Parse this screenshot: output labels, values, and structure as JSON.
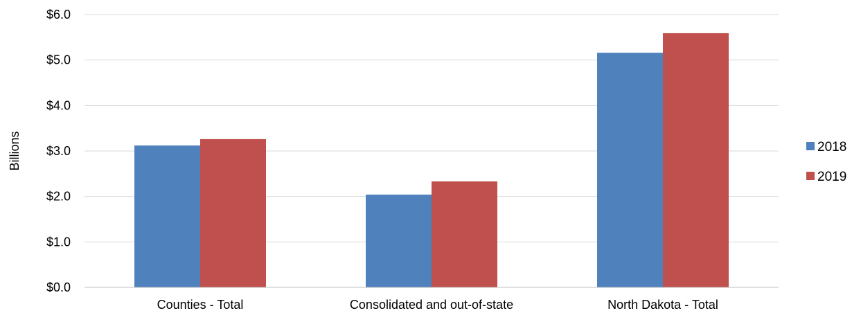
{
  "chart_data": {
    "type": "bar",
    "categories": [
      "Counties - Total",
      "Consolidated and out-of-state",
      "North Dakota - Total"
    ],
    "series": [
      {
        "name": "2018",
        "values": [
          3.12,
          2.04,
          5.16
        ],
        "color": "#4f81bd"
      },
      {
        "name": "2019",
        "values": [
          3.26,
          2.33,
          5.59
        ],
        "color": "#c0504d"
      }
    ],
    "ylabel": "Billions",
    "ylim": [
      0,
      6
    ],
    "yticks": [
      0,
      1,
      2,
      3,
      4,
      5,
      6
    ],
    "ytick_labels": [
      "$0.0",
      "$1.0",
      "$2.0",
      "$3.0",
      "$4.0",
      "$5.0",
      "$6.0"
    ],
    "grid": true,
    "legend": "right"
  }
}
